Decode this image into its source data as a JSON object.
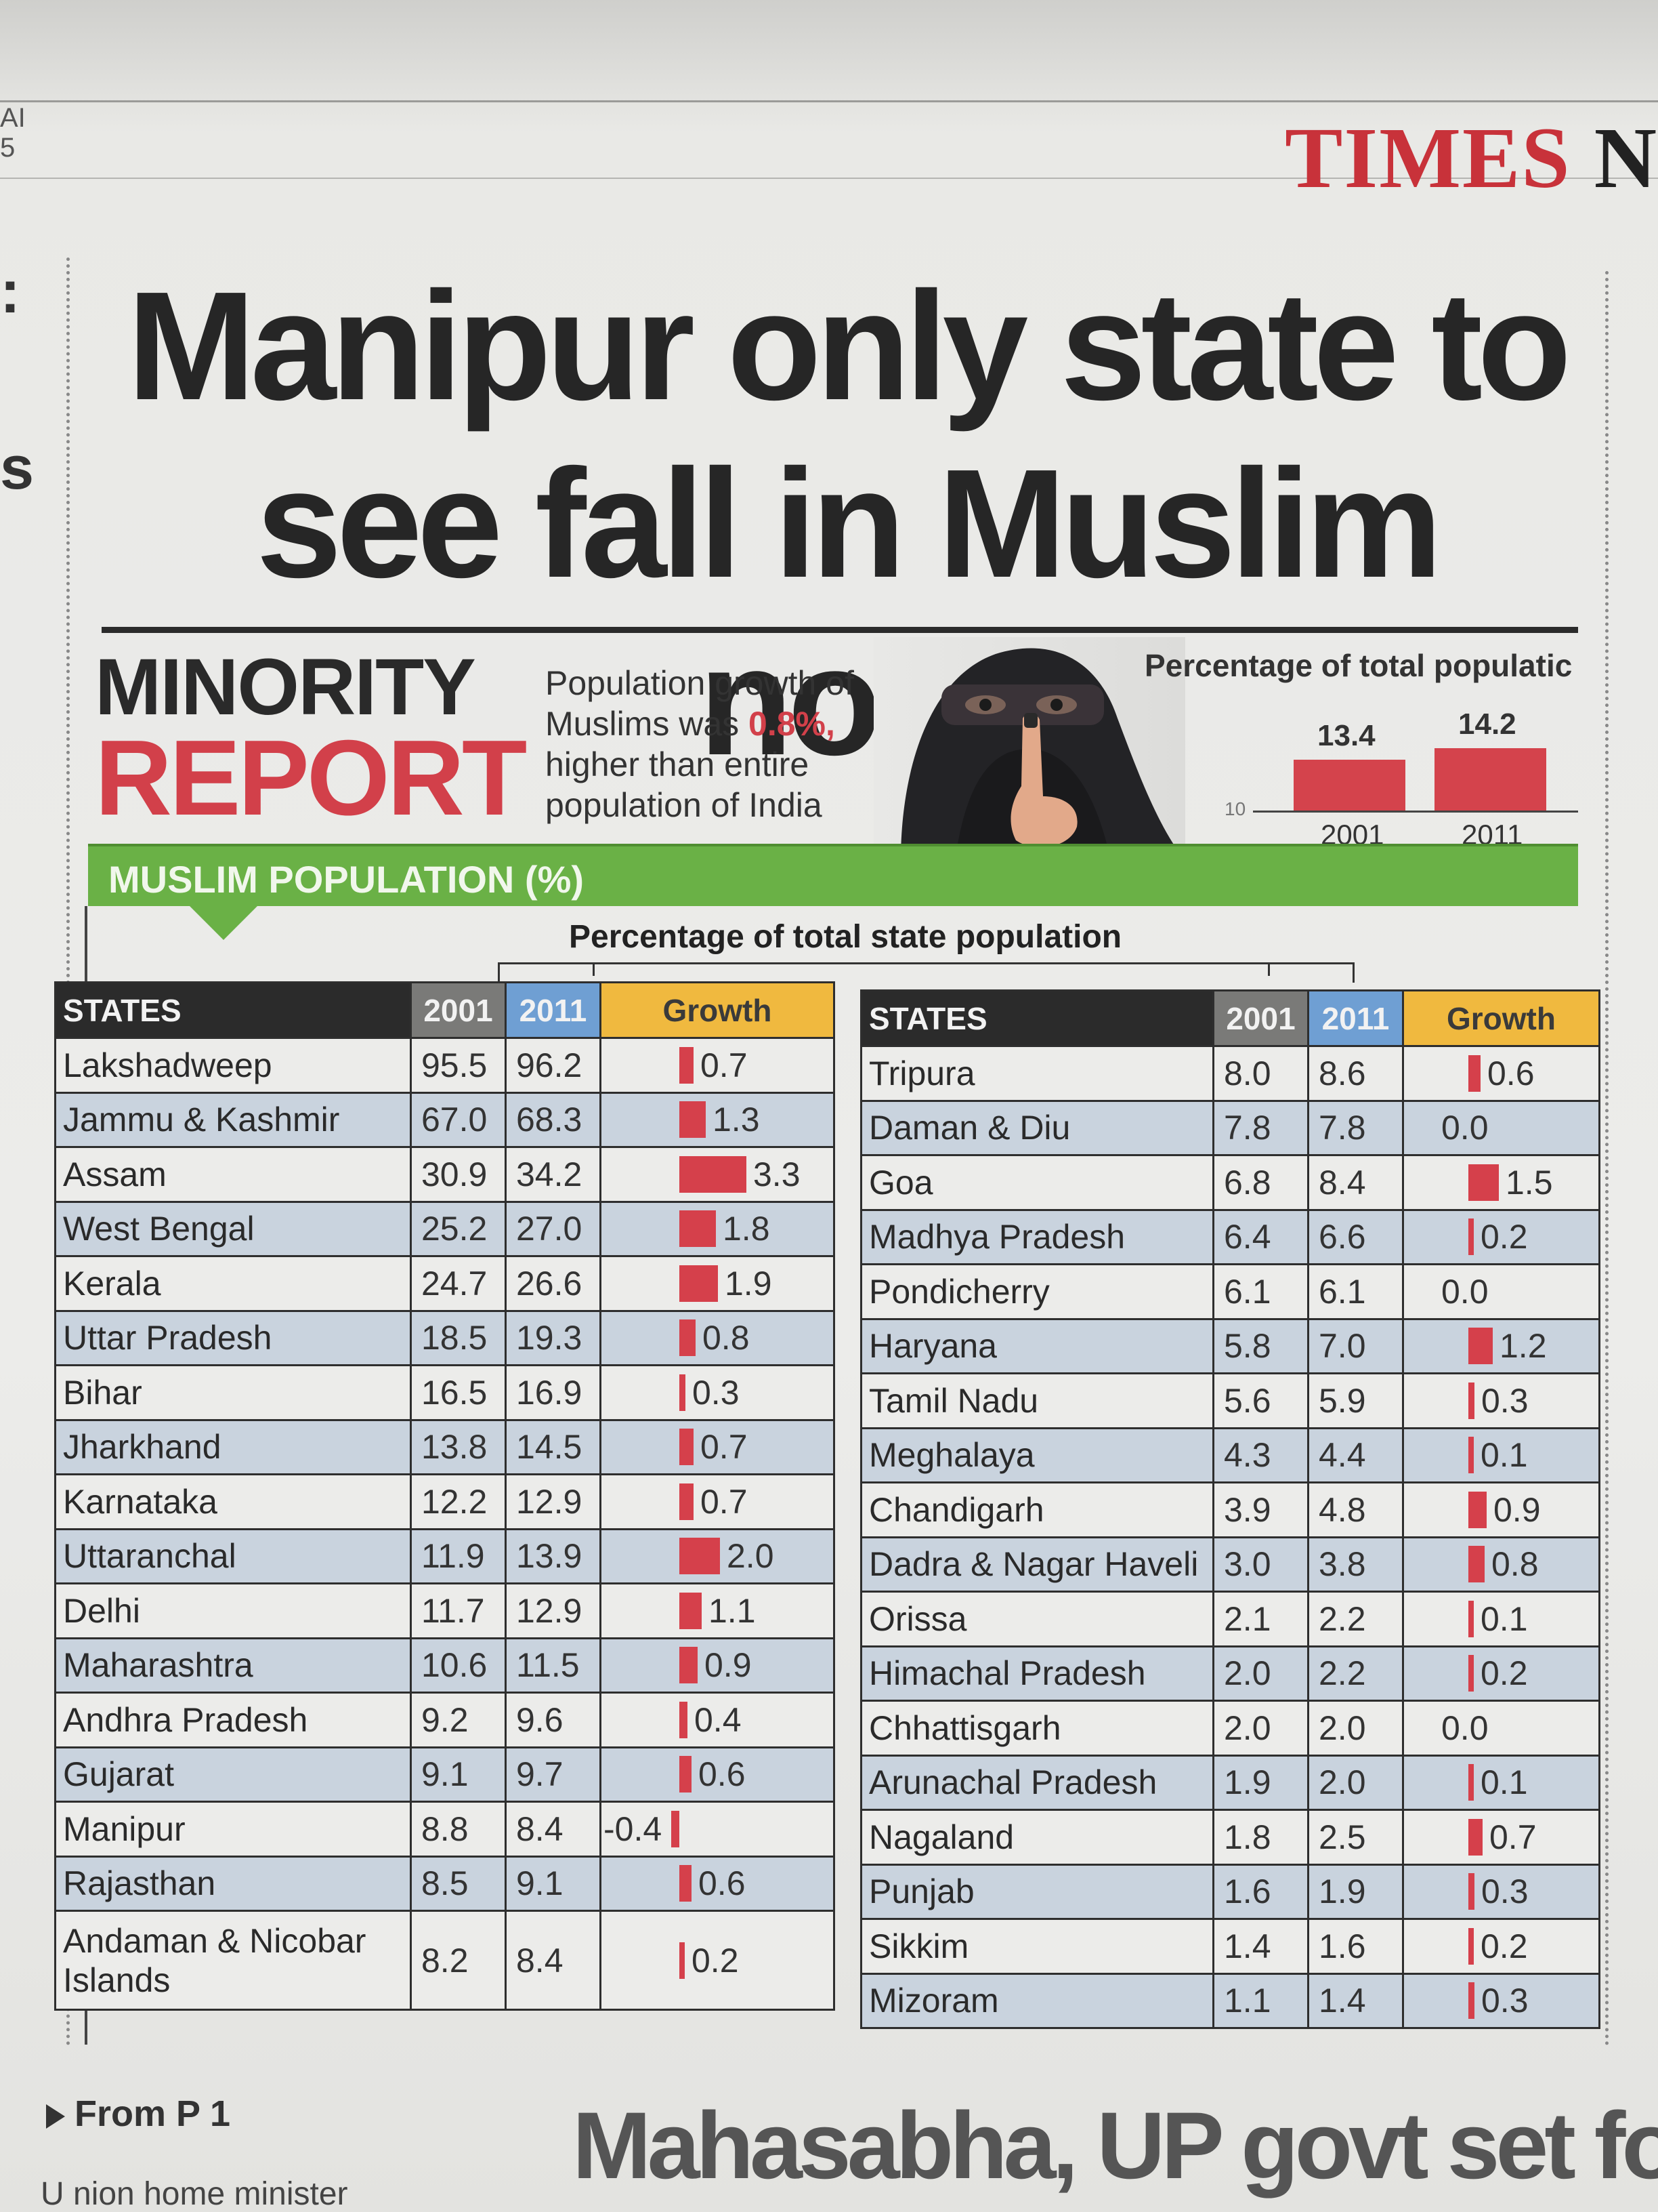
{
  "masthead": {
    "corner": "AI\n5",
    "paper_red": "TIMES",
    "paper_black": "N"
  },
  "headline": "Manipur only state to see fall in Muslim nos.",
  "feature": {
    "kicker_top": "MINORITY",
    "kicker_bottom": "REPORT",
    "blurb_pre": "Population growth of Muslims was ",
    "blurb_highlight": "0.8%,",
    "blurb_post": " higher than entire population of India"
  },
  "national_chart": {
    "title": "Percentage of total populatic",
    "axis_tick": "10",
    "bars": [
      {
        "year": "2001",
        "value": 13.4,
        "label": "13.4"
      },
      {
        "year": "2011",
        "value": 14.2,
        "label": "14.2"
      }
    ]
  },
  "section_band": "MUSLIM POPULATION (%)",
  "table_subtitle": "Percentage of total state population",
  "columns": {
    "states": "STATES",
    "y2001": "2001",
    "y2011": "2011",
    "growth": "Growth"
  },
  "left_table": [
    {
      "name": "Lakshadweep",
      "y2001": "95.5",
      "y2011": "96.2",
      "growth": "0.7",
      "g": 0.7
    },
    {
      "name": "Jammu & Kashmir",
      "y2001": "67.0",
      "y2011": "68.3",
      "growth": "1.3",
      "g": 1.3
    },
    {
      "name": "Assam",
      "y2001": "30.9",
      "y2011": "34.2",
      "growth": "3.3",
      "g": 3.3
    },
    {
      "name": "West Bengal",
      "y2001": "25.2",
      "y2011": "27.0",
      "growth": "1.8",
      "g": 1.8
    },
    {
      "name": "Kerala",
      "y2001": "24.7",
      "y2011": "26.6",
      "growth": "1.9",
      "g": 1.9
    },
    {
      "name": "Uttar Pradesh",
      "y2001": "18.5",
      "y2011": "19.3",
      "growth": "0.8",
      "g": 0.8
    },
    {
      "name": "Bihar",
      "y2001": "16.5",
      "y2011": "16.9",
      "growth": "0.3",
      "g": 0.3
    },
    {
      "name": "Jharkhand",
      "y2001": "13.8",
      "y2011": "14.5",
      "growth": "0.7",
      "g": 0.7
    },
    {
      "name": "Karnataka",
      "y2001": "12.2",
      "y2011": "12.9",
      "growth": "0.7",
      "g": 0.7
    },
    {
      "name": "Uttaranchal",
      "y2001": "11.9",
      "y2011": "13.9",
      "growth": "2.0",
      "g": 2.0
    },
    {
      "name": "Delhi",
      "y2001": "11.7",
      "y2011": "12.9",
      "growth": "1.1",
      "g": 1.1
    },
    {
      "name": "Maharashtra",
      "y2001": "10.6",
      "y2011": "11.5",
      "growth": "0.9",
      "g": 0.9
    },
    {
      "name": "Andhra Pradesh",
      "y2001": "9.2",
      "y2011": "9.6",
      "growth": "0.4",
      "g": 0.4
    },
    {
      "name": "Gujarat",
      "y2001": "9.1",
      "y2011": "9.7",
      "growth": "0.6",
      "g": 0.6
    },
    {
      "name": "Manipur",
      "y2001": "8.8",
      "y2011": "8.4",
      "growth": "-0.4",
      "g": -0.4
    },
    {
      "name": "Rajasthan",
      "y2001": "8.5",
      "y2011": "9.1",
      "growth": "0.6",
      "g": 0.6
    },
    {
      "name": "Andaman & Nicobar Islands",
      "y2001": "8.2",
      "y2011": "8.4",
      "growth": "0.2",
      "g": 0.2
    }
  ],
  "right_table": [
    {
      "name": "Tripura",
      "y2001": "8.0",
      "y2011": "8.6",
      "growth": "0.6",
      "g": 0.6
    },
    {
      "name": "Daman & Diu",
      "y2001": "7.8",
      "y2011": "7.8",
      "growth": "0.0",
      "g": 0.0
    },
    {
      "name": "Goa",
      "y2001": "6.8",
      "y2011": "8.4",
      "growth": "1.5",
      "g": 1.5
    },
    {
      "name": "Madhya Pradesh",
      "y2001": "6.4",
      "y2011": "6.6",
      "growth": "0.2",
      "g": 0.2
    },
    {
      "name": "Pondicherry",
      "y2001": "6.1",
      "y2011": "6.1",
      "growth": "0.0",
      "g": 0.0
    },
    {
      "name": "Haryana",
      "y2001": "5.8",
      "y2011": "7.0",
      "growth": "1.2",
      "g": 1.2
    },
    {
      "name": "Tamil Nadu",
      "y2001": "5.6",
      "y2011": "5.9",
      "growth": "0.3",
      "g": 0.3
    },
    {
      "name": "Meghalaya",
      "y2001": "4.3",
      "y2011": "4.4",
      "growth": "0.1",
      "g": 0.1
    },
    {
      "name": "Chandigarh",
      "y2001": "3.9",
      "y2011": "4.8",
      "growth": "0.9",
      "g": 0.9
    },
    {
      "name": "Dadra & Nagar Haveli",
      "y2001": "3.0",
      "y2011": "3.8",
      "growth": "0.8",
      "g": 0.8
    },
    {
      "name": "Orissa",
      "y2001": "2.1",
      "y2011": "2.2",
      "growth": "0.1",
      "g": 0.1
    },
    {
      "name": "Himachal Pradesh",
      "y2001": "2.0",
      "y2011": "2.2",
      "growth": "0.2",
      "g": 0.2
    },
    {
      "name": "Chhattisgarh",
      "y2001": "2.0",
      "y2011": "2.0",
      "growth": "0.0",
      "g": 0.0
    },
    {
      "name": "Arunachal Pradesh",
      "y2001": "1.9",
      "y2011": "2.0",
      "growth": "0.1",
      "g": 0.1
    },
    {
      "name": "Nagaland",
      "y2001": "1.8",
      "y2011": "2.5",
      "growth": "0.7",
      "g": 0.7
    },
    {
      "name": "Punjab",
      "y2001": "1.6",
      "y2011": "1.9",
      "growth": "0.3",
      "g": 0.3
    },
    {
      "name": "Sikkim",
      "y2001": "1.4",
      "y2011": "1.6",
      "growth": "0.2",
      "g": 0.2
    },
    {
      "name": "Mizoram",
      "y2001": "1.1",
      "y2011": "1.4",
      "growth": "0.3",
      "g": 0.3
    }
  ],
  "footer": {
    "jump": "From P 1",
    "next_headline": "Mahasabha, UP govt set for",
    "body_start": "U nion  home  minister"
  },
  "colors": {
    "accent_red": "#d2404a",
    "band_green": "#6ab146",
    "col_2011_blue": "#6f9fd3",
    "col_growth_orange": "#f0b93f"
  }
}
